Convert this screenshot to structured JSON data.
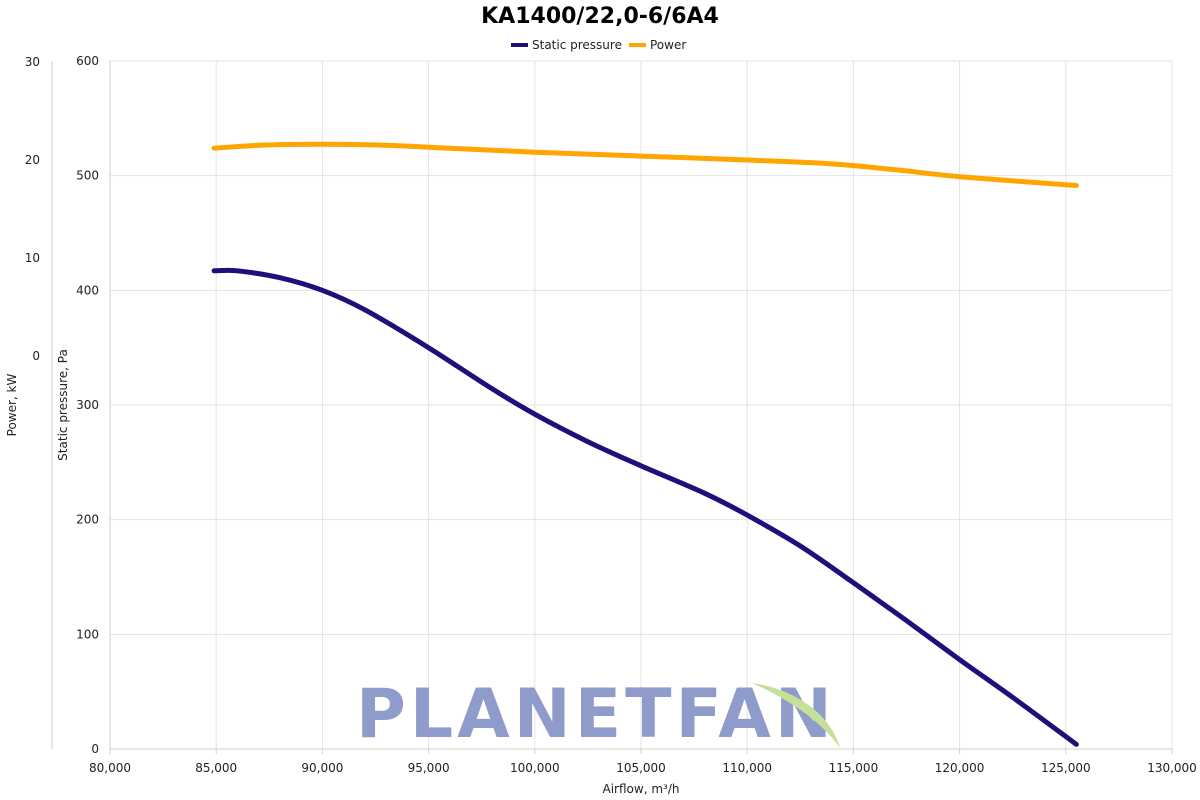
{
  "chart_data": {
    "type": "line",
    "title": "KA1400/22,0-6/6A4",
    "xlabel": "Airflow, m³/h",
    "ylabel_left": "Power, kW",
    "ylabel_right": "Static pressure, Pa",
    "xlim": [
      80000,
      130000
    ],
    "x_ticks": [
      "80,000",
      "85,000",
      "90,000",
      "95,000",
      "100,000",
      "105,000",
      "110,000",
      "115,000",
      "120,000",
      "125,000",
      "130,000"
    ],
    "ylim_pressure": [
      0,
      600
    ],
    "pressure_ticks": [
      "0",
      "100",
      "200",
      "300",
      "400",
      "500",
      "600"
    ],
    "power_ticks": [
      "0",
      "10",
      "20",
      "30"
    ],
    "grid": true,
    "legend_position": "top-center",
    "series": [
      {
        "name": "Static pressure",
        "color": "#1f0f7a",
        "axis": "pressure",
        "x": [
          84900,
          86000,
          88000,
          90000,
          92000,
          95000,
          98000,
          100000,
          102500,
          105000,
          108000,
          110000,
          112500,
          115000,
          117500,
          120000,
          122500,
          125500
        ],
        "y": [
          417,
          417,
          411,
          400,
          383,
          350,
          314,
          292,
          268,
          247,
          223,
          204,
          177,
          145,
          112,
          78,
          45,
          4
        ]
      },
      {
        "name": "Power",
        "color": "#ffa500",
        "axis": "power",
        "x": [
          84900,
          87000,
          90000,
          93000,
          96000,
          100000,
          105000,
          110000,
          114000,
          117000,
          120000,
          125500
        ],
        "y": [
          21.2,
          21.5,
          21.6,
          21.5,
          21.2,
          20.8,
          20.4,
          20.0,
          19.6,
          19.0,
          18.3,
          17.4
        ]
      }
    ],
    "watermark": "PLANETFAN"
  }
}
